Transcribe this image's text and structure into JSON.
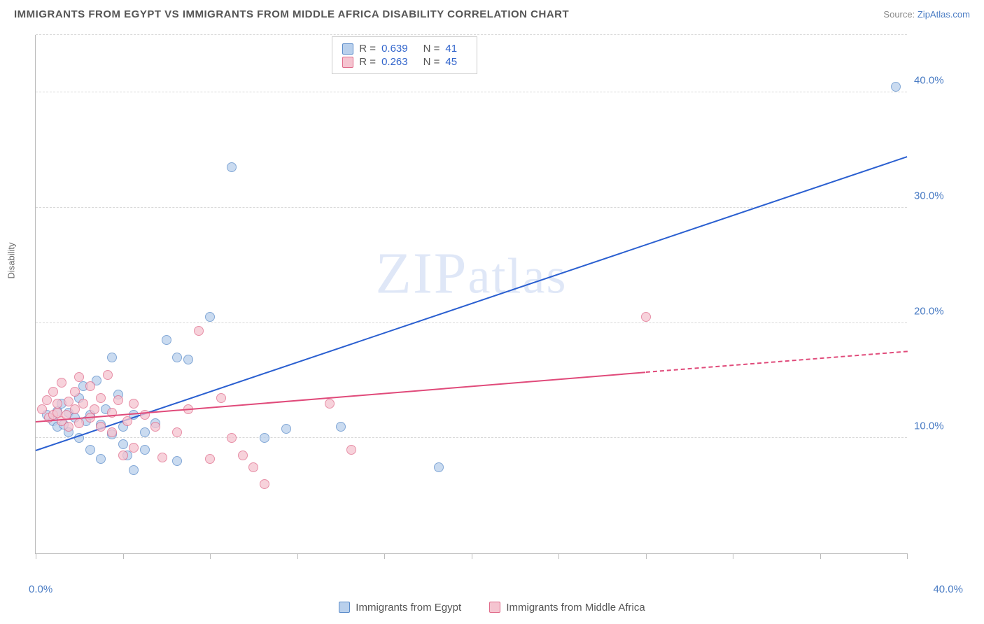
{
  "title": "IMMIGRANTS FROM EGYPT VS IMMIGRANTS FROM MIDDLE AFRICA DISABILITY CORRELATION CHART",
  "source_label": "Source:",
  "source_name": "ZipAtlas.com",
  "watermark": "ZIPatlas",
  "ylabel": "Disability",
  "chart": {
    "type": "scatter",
    "xlim": [
      0,
      40
    ],
    "ylim": [
      0,
      45
    ],
    "x_min_label": "0.0%",
    "x_max_label": "40.0%",
    "y_ticks": [
      10,
      20,
      30,
      40
    ],
    "y_tick_labels": [
      "10.0%",
      "20.0%",
      "30.0%",
      "40.0%"
    ],
    "x_tick_positions": [
      0,
      4,
      8,
      12,
      16,
      20,
      24,
      28,
      32,
      36,
      40
    ],
    "grid_color": "#d8d8d8",
    "axis_color": "#bbbbbb",
    "background_color": "#ffffff",
    "marker_size": 14,
    "series": [
      {
        "name": "Immigrants from Egypt",
        "fill": "#b9d0ec",
        "stroke": "#5a8bc9",
        "line_color": "#2a5fd0",
        "R": "0.639",
        "N": "41",
        "trend": {
          "x1": 0,
          "y1": 9.0,
          "x2": 40,
          "y2": 34.5,
          "dashed": false
        },
        "points": [
          [
            0.5,
            12.0
          ],
          [
            0.8,
            11.5
          ],
          [
            1.0,
            12.3
          ],
          [
            1.0,
            11.0
          ],
          [
            1.2,
            13.0
          ],
          [
            1.3,
            11.2
          ],
          [
            1.5,
            10.5
          ],
          [
            1.5,
            12.2
          ],
          [
            1.8,
            11.8
          ],
          [
            2.0,
            13.5
          ],
          [
            2.0,
            10.0
          ],
          [
            2.2,
            14.5
          ],
          [
            2.3,
            11.5
          ],
          [
            2.5,
            12.0
          ],
          [
            2.5,
            9.0
          ],
          [
            2.8,
            15.0
          ],
          [
            3.0,
            11.2
          ],
          [
            3.0,
            8.2
          ],
          [
            3.2,
            12.5
          ],
          [
            3.5,
            17.0
          ],
          [
            3.5,
            10.3
          ],
          [
            3.8,
            13.8
          ],
          [
            4.0,
            9.5
          ],
          [
            4.0,
            11.0
          ],
          [
            4.2,
            8.5
          ],
          [
            4.5,
            12.0
          ],
          [
            4.5,
            7.2
          ],
          [
            5.0,
            10.5
          ],
          [
            5.0,
            9.0
          ],
          [
            5.5,
            11.3
          ],
          [
            6.0,
            18.5
          ],
          [
            6.5,
            17.0
          ],
          [
            6.5,
            8.0
          ],
          [
            7.0,
            16.8
          ],
          [
            8.0,
            20.5
          ],
          [
            9.0,
            33.5
          ],
          [
            10.5,
            10.0
          ],
          [
            11.5,
            10.8
          ],
          [
            14.0,
            11.0
          ],
          [
            18.5,
            7.5
          ],
          [
            39.5,
            40.5
          ]
        ]
      },
      {
        "name": "Immigrants from Middle Africa",
        "fill": "#f5c4d0",
        "stroke": "#e06a8a",
        "line_color": "#e04a7a",
        "R": "0.263",
        "N": "45",
        "trend": {
          "x1": 0,
          "y1": 11.5,
          "x2": 28,
          "y2": 15.8,
          "dashed": false
        },
        "trend_dash": {
          "x1": 28,
          "y1": 15.8,
          "x2": 40,
          "y2": 17.6
        },
        "points": [
          [
            0.3,
            12.5
          ],
          [
            0.5,
            13.3
          ],
          [
            0.6,
            11.8
          ],
          [
            0.8,
            12.0
          ],
          [
            0.8,
            14.0
          ],
          [
            1.0,
            13.0
          ],
          [
            1.0,
            12.2
          ],
          [
            1.2,
            11.5
          ],
          [
            1.2,
            14.8
          ],
          [
            1.4,
            12.0
          ],
          [
            1.5,
            13.2
          ],
          [
            1.5,
            11.0
          ],
          [
            1.8,
            14.0
          ],
          [
            1.8,
            12.5
          ],
          [
            2.0,
            11.3
          ],
          [
            2.0,
            15.3
          ],
          [
            2.2,
            13.0
          ],
          [
            2.5,
            11.8
          ],
          [
            2.5,
            14.5
          ],
          [
            2.7,
            12.5
          ],
          [
            3.0,
            11.0
          ],
          [
            3.0,
            13.5
          ],
          [
            3.3,
            15.5
          ],
          [
            3.5,
            10.5
          ],
          [
            3.5,
            12.2
          ],
          [
            3.8,
            13.3
          ],
          [
            4.0,
            8.5
          ],
          [
            4.2,
            11.5
          ],
          [
            4.5,
            13.0
          ],
          [
            4.5,
            9.2
          ],
          [
            5.0,
            12.0
          ],
          [
            5.5,
            11.0
          ],
          [
            5.8,
            8.3
          ],
          [
            6.5,
            10.5
          ],
          [
            7.0,
            12.5
          ],
          [
            7.5,
            19.3
          ],
          [
            8.0,
            8.2
          ],
          [
            8.5,
            13.5
          ],
          [
            9.0,
            10.0
          ],
          [
            9.5,
            8.5
          ],
          [
            10.0,
            7.5
          ],
          [
            10.5,
            6.0
          ],
          [
            13.5,
            13.0
          ],
          [
            14.5,
            9.0
          ],
          [
            28.0,
            20.5
          ]
        ]
      }
    ]
  },
  "colors": {
    "tick_label": "#4a7cc4",
    "text": "#555555",
    "stat_value": "#3366cc"
  }
}
